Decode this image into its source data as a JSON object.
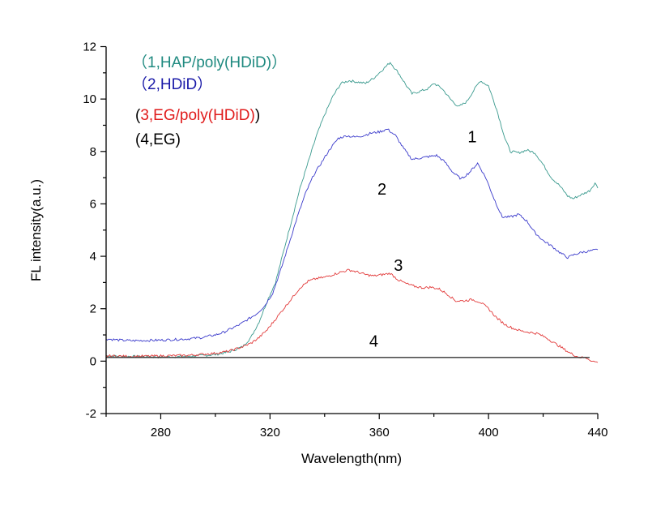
{
  "chart_data": {
    "type": "line",
    "title": "",
    "xlabel": "Wavelength(nm)",
    "ylabel": "FL intensity(a.u.)",
    "xlim": [
      260,
      440
    ],
    "ylim": [
      -2,
      12
    ],
    "xticks": [
      280,
      320,
      360,
      400,
      440
    ],
    "xticks_labels": [
      "280",
      "320",
      "360",
      "400",
      "440"
    ],
    "xminor": [
      260,
      300,
      340,
      380,
      420
    ],
    "yticks": [
      -2,
      0,
      2,
      4,
      6,
      8,
      10,
      12
    ],
    "yticks_labels": [
      "-2",
      "0",
      "2",
      "4",
      "6",
      "8",
      "10",
      "12"
    ],
    "yminor": [
      -1,
      1,
      3,
      5,
      7,
      9,
      11
    ],
    "grid": false,
    "legend_position": "top-left",
    "legend": [
      {
        "parts": [
          {
            "text": "（1,HAP/poly(HDiD)）",
            "color": "#1f8a80"
          }
        ]
      },
      {
        "parts": [
          {
            "text": "（2,HDiD）",
            "color": "#1a1aa8"
          }
        ]
      },
      {
        "parts": [
          {
            "text": "(",
            "color": "#000000"
          },
          {
            "text": "3,EG/poly(HDiD)",
            "color": "#e01b1b"
          },
          {
            "text": ")",
            "color": "#000000"
          }
        ]
      },
      {
        "parts": [
          {
            "text": "(4,EG)",
            "color": "#000000"
          }
        ]
      }
    ],
    "series": [
      {
        "name": "1,HAP/poly(HDiD)",
        "label": "1",
        "label_at": [
          394,
          8.6
        ],
        "color": "#3a9a8e",
        "x": [
          260,
          270,
          280,
          290,
          300,
          305,
          310,
          313,
          316,
          319,
          322,
          325,
          328,
          331,
          334,
          337,
          340,
          343,
          346,
          349,
          352,
          355,
          358,
          361,
          364,
          367,
          370,
          372,
          375,
          378,
          380,
          383,
          386,
          389,
          392,
          395,
          397,
          400,
          403,
          406,
          408,
          411,
          414,
          417,
          420,
          423,
          426,
          429,
          431,
          434,
          437,
          439,
          440
        ],
        "y": [
          0.2,
          0.18,
          0.15,
          0.18,
          0.25,
          0.35,
          0.55,
          0.9,
          1.5,
          2.3,
          3.0,
          4.2,
          5.4,
          6.6,
          7.6,
          8.6,
          9.4,
          10.1,
          10.6,
          10.7,
          10.65,
          10.6,
          10.8,
          11.1,
          11.4,
          11.0,
          10.5,
          10.2,
          10.3,
          10.4,
          10.6,
          10.4,
          10.0,
          9.7,
          9.9,
          10.4,
          10.7,
          10.5,
          9.6,
          8.5,
          8.0,
          7.95,
          8.05,
          7.95,
          7.5,
          7.0,
          6.7,
          6.3,
          6.2,
          6.35,
          6.5,
          6.8,
          6.6
        ]
      },
      {
        "name": "2,HDiD",
        "label": "2",
        "label_at": [
          361,
          6.6
        ],
        "color": "#3a3acb",
        "x": [
          260,
          265,
          270,
          280,
          290,
          295,
          300,
          303,
          306,
          309,
          312,
          315,
          318,
          321,
          324,
          327,
          330,
          333,
          336,
          339,
          342,
          345,
          348,
          351,
          354,
          357,
          360,
          363,
          366,
          369,
          372,
          375,
          378,
          381,
          384,
          387,
          390,
          393,
          396,
          399,
          402,
          405,
          408,
          411,
          414,
          417,
          420,
          423,
          426,
          429,
          431,
          434,
          437,
          440
        ],
        "y": [
          0.85,
          0.8,
          0.78,
          0.8,
          0.85,
          0.9,
          1.0,
          1.1,
          1.25,
          1.4,
          1.6,
          1.8,
          2.1,
          2.6,
          3.5,
          4.5,
          5.5,
          6.4,
          7.1,
          7.6,
          8.1,
          8.5,
          8.6,
          8.55,
          8.6,
          8.7,
          8.75,
          8.85,
          8.6,
          8.1,
          7.7,
          7.75,
          7.8,
          7.85,
          7.6,
          7.2,
          6.95,
          7.2,
          7.55,
          7.0,
          6.2,
          5.5,
          5.5,
          5.6,
          5.35,
          4.9,
          4.6,
          4.4,
          4.15,
          3.95,
          4.05,
          4.15,
          4.2,
          4.25
        ]
      },
      {
        "name": "3,EG/poly(HDiD)",
        "label": "3",
        "label_at": [
          367,
          3.7
        ],
        "color": "#e23a3a",
        "x": [
          260,
          270,
          280,
          290,
          300,
          305,
          310,
          313,
          316,
          319,
          322,
          325,
          328,
          331,
          334,
          337,
          340,
          343,
          346,
          349,
          352,
          355,
          358,
          361,
          364,
          367,
          370,
          373,
          376,
          379,
          382,
          385,
          388,
          391,
          394,
          397,
          400,
          403,
          406,
          409,
          412,
          415,
          418,
          421,
          424,
          427,
          430,
          433,
          436,
          438,
          440
        ],
        "y": [
          0.2,
          0.18,
          0.2,
          0.22,
          0.3,
          0.38,
          0.55,
          0.68,
          0.9,
          1.2,
          1.6,
          2.0,
          2.4,
          2.8,
          3.05,
          3.15,
          3.2,
          3.3,
          3.4,
          3.48,
          3.4,
          3.3,
          3.25,
          3.3,
          3.35,
          3.1,
          2.95,
          2.85,
          2.8,
          2.82,
          2.75,
          2.55,
          2.3,
          2.3,
          2.35,
          2.25,
          2.0,
          1.65,
          1.4,
          1.25,
          1.15,
          1.1,
          1.05,
          0.9,
          0.7,
          0.5,
          0.3,
          0.15,
          0.12,
          0.0,
          -0.05
        ]
      },
      {
        "name": "4,EG",
        "label": "4",
        "label_at": [
          358,
          0.8
        ],
        "color": "#333333",
        "x": [
          260,
          437
        ],
        "y": [
          0.14,
          0.14
        ]
      }
    ]
  }
}
